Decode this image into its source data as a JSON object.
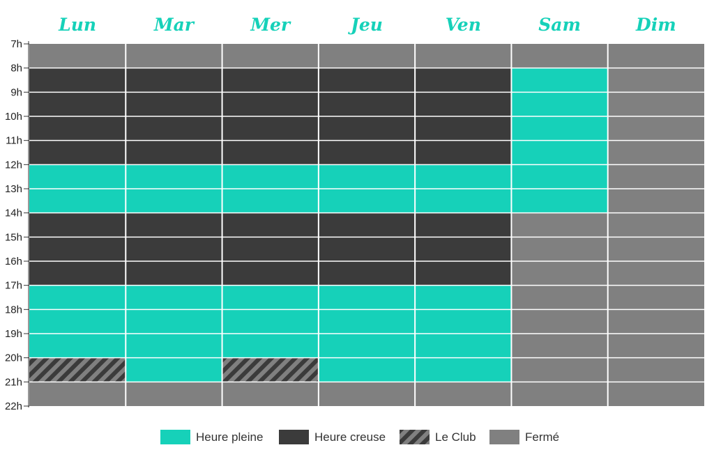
{
  "chart_data": {
    "type": "heatmap",
    "days": [
      "Lun",
      "Mar",
      "Mer",
      "Jeu",
      "Ven",
      "Sam",
      "Dim"
    ],
    "hours": [
      "7h",
      "8h",
      "9h",
      "10h",
      "11h",
      "12h",
      "13h",
      "14h",
      "15h",
      "16h",
      "17h",
      "18h",
      "19h",
      "20h",
      "21h",
      "22h"
    ],
    "legend": [
      {
        "key": "pleine",
        "label": "Heure pleine"
      },
      {
        "key": "creuse",
        "label": "Heure creuse"
      },
      {
        "key": "club",
        "label": "Le Club"
      },
      {
        "key": "ferme",
        "label": "Fermé"
      }
    ],
    "colors": {
      "pleine": "#16d1b9",
      "creuse": "#3b3b3b",
      "ferme": "#808080",
      "club_base": "#808080",
      "club_stripe": "#3b3b3b",
      "day_label": "#16d1b9",
      "grid": "#ffffff"
    },
    "schedule": [
      {
        "day": "Lun",
        "blocks": [
          {
            "start": 7,
            "end": 8,
            "type": "ferme"
          },
          {
            "start": 8,
            "end": 12,
            "type": "creuse"
          },
          {
            "start": 12,
            "end": 14,
            "type": "pleine"
          },
          {
            "start": 14,
            "end": 17,
            "type": "creuse"
          },
          {
            "start": 17,
            "end": 20,
            "type": "pleine"
          },
          {
            "start": 20,
            "end": 21,
            "type": "club"
          },
          {
            "start": 21,
            "end": 22,
            "type": "ferme"
          }
        ]
      },
      {
        "day": "Mar",
        "blocks": [
          {
            "start": 7,
            "end": 8,
            "type": "ferme"
          },
          {
            "start": 8,
            "end": 12,
            "type": "creuse"
          },
          {
            "start": 12,
            "end": 14,
            "type": "pleine"
          },
          {
            "start": 14,
            "end": 17,
            "type": "creuse"
          },
          {
            "start": 17,
            "end": 21,
            "type": "pleine"
          },
          {
            "start": 21,
            "end": 22,
            "type": "ferme"
          }
        ]
      },
      {
        "day": "Mer",
        "blocks": [
          {
            "start": 7,
            "end": 8,
            "type": "ferme"
          },
          {
            "start": 8,
            "end": 12,
            "type": "creuse"
          },
          {
            "start": 12,
            "end": 14,
            "type": "pleine"
          },
          {
            "start": 14,
            "end": 17,
            "type": "creuse"
          },
          {
            "start": 17,
            "end": 20,
            "type": "pleine"
          },
          {
            "start": 20,
            "end": 21,
            "type": "club"
          },
          {
            "start": 21,
            "end": 22,
            "type": "ferme"
          }
        ]
      },
      {
        "day": "Jeu",
        "blocks": [
          {
            "start": 7,
            "end": 8,
            "type": "ferme"
          },
          {
            "start": 8,
            "end": 12,
            "type": "creuse"
          },
          {
            "start": 12,
            "end": 14,
            "type": "pleine"
          },
          {
            "start": 14,
            "end": 17,
            "type": "creuse"
          },
          {
            "start": 17,
            "end": 21,
            "type": "pleine"
          },
          {
            "start": 21,
            "end": 22,
            "type": "ferme"
          }
        ]
      },
      {
        "day": "Ven",
        "blocks": [
          {
            "start": 7,
            "end": 8,
            "type": "ferme"
          },
          {
            "start": 8,
            "end": 12,
            "type": "creuse"
          },
          {
            "start": 12,
            "end": 14,
            "type": "pleine"
          },
          {
            "start": 14,
            "end": 17,
            "type": "creuse"
          },
          {
            "start": 17,
            "end": 21,
            "type": "pleine"
          },
          {
            "start": 21,
            "end": 22,
            "type": "ferme"
          }
        ]
      },
      {
        "day": "Sam",
        "blocks": [
          {
            "start": 7,
            "end": 8,
            "type": "ferme"
          },
          {
            "start": 8,
            "end": 14,
            "type": "pleine"
          },
          {
            "start": 14,
            "end": 22,
            "type": "ferme"
          }
        ]
      },
      {
        "day": "Dim",
        "blocks": [
          {
            "start": 7,
            "end": 22,
            "type": "ferme"
          }
        ]
      }
    ]
  }
}
